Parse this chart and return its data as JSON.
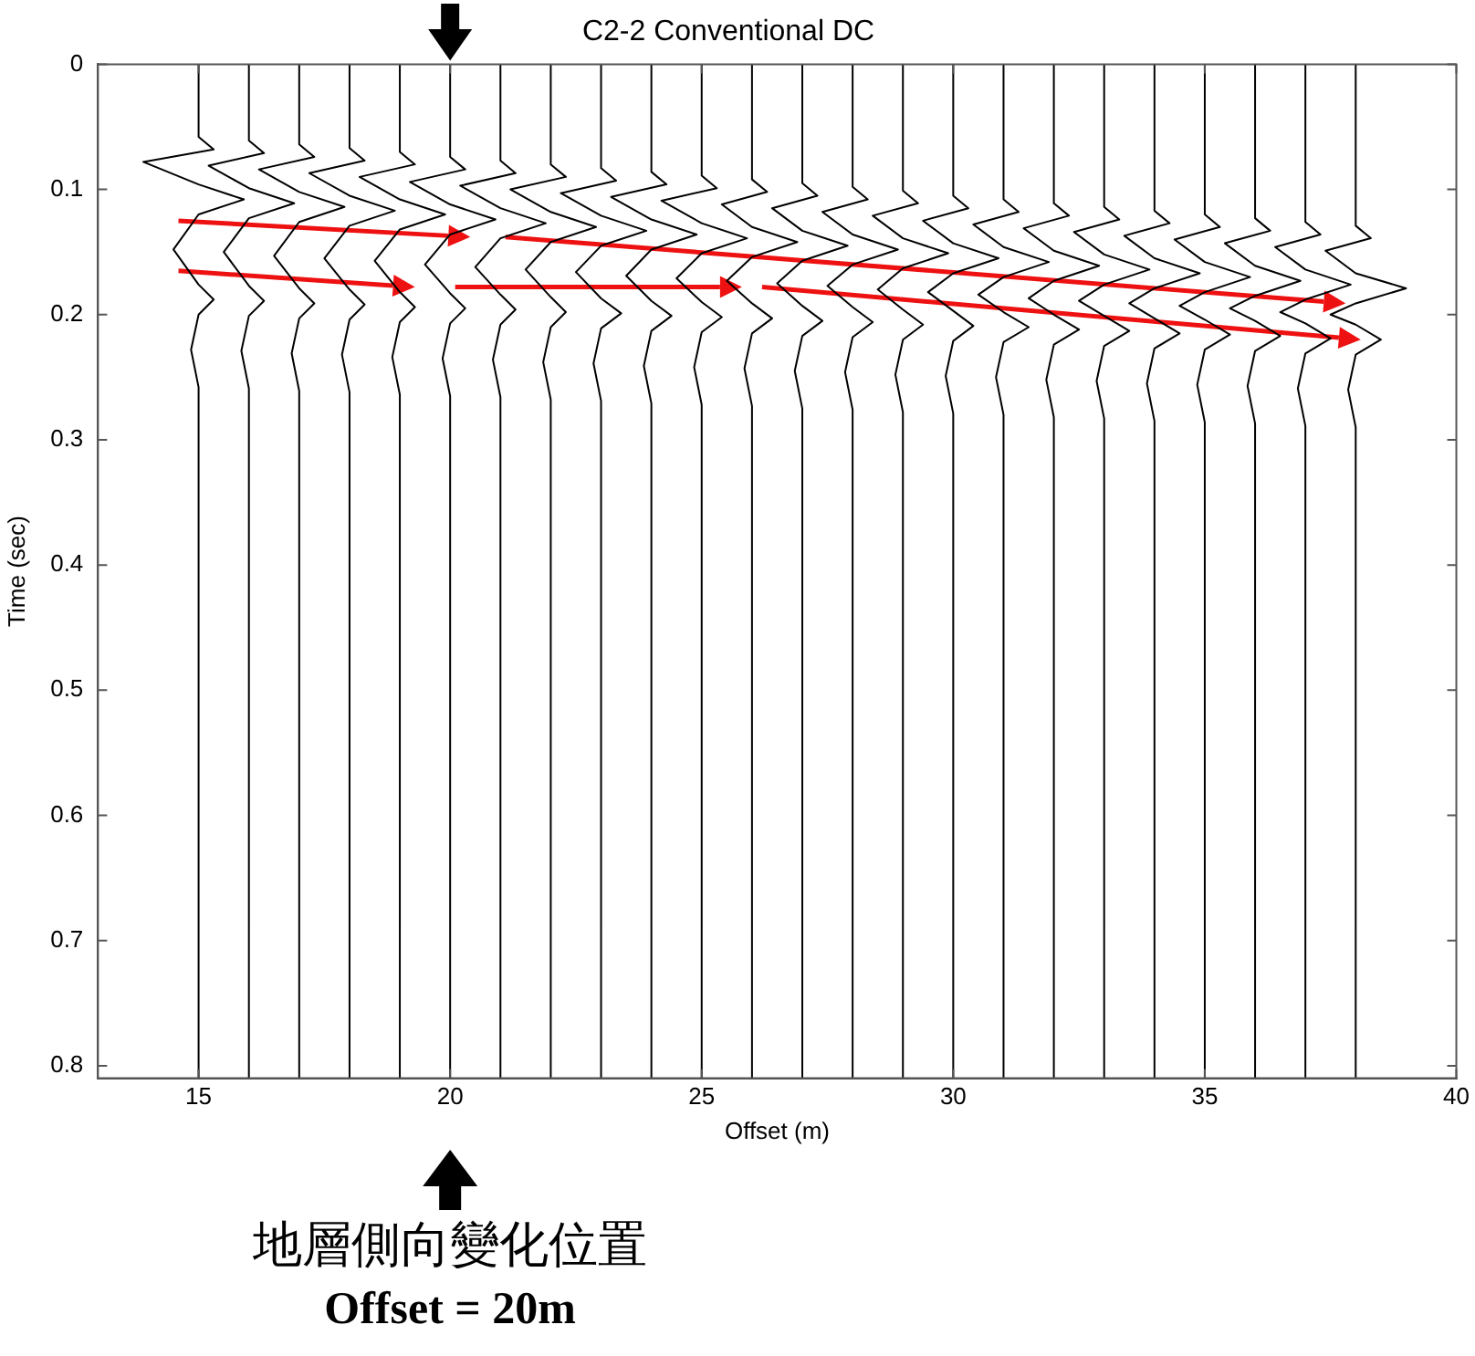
{
  "chart_data": {
    "type": "line",
    "title": "C2-2 Conventional DC",
    "xlabel": "Offset (m)",
    "ylabel": "Time (sec)",
    "xlim": [
      13,
      40
    ],
    "xticks": [
      15,
      20,
      25,
      30,
      35,
      40
    ],
    "ylim": [
      0.81,
      0
    ],
    "yticks": [
      0,
      0.1,
      0.2,
      0.3,
      0.4,
      0.5,
      0.6,
      0.7,
      0.8
    ],
    "grid": false,
    "legend": false,
    "marker": "none",
    "line_style": "solid",
    "annotations": [
      "地層側向變化位置",
      "Offset = 20m"
    ],
    "series": [
      {
        "color": "#000000",
        "x": [
          15,
          15,
          15.3,
          13.9,
          15,
          15.9,
          15,
          14.5,
          15,
          15.3,
          15,
          14.85,
          15,
          15
        ],
        "values": [
          0,
          0.058,
          0.068,
          0.078,
          0.096,
          0.108,
          0.12,
          0.148,
          0.176,
          0.188,
          0.2,
          0.228,
          0.258,
          0.81
        ]
      },
      {
        "color": "#000000",
        "x": [
          16,
          16,
          16.3,
          15.2,
          16,
          16.9,
          16,
          15.5,
          16,
          16.3,
          16,
          15.85,
          16,
          16
        ],
        "values": [
          0,
          0.061,
          0.071,
          0.081,
          0.099,
          0.111,
          0.123,
          0.15,
          0.177,
          0.189,
          0.201,
          0.229,
          0.259,
          0.81
        ]
      },
      {
        "color": "#000000",
        "x": [
          17,
          17,
          17.3,
          16.2,
          17,
          17.9,
          17,
          16.5,
          17,
          17.3,
          17,
          16.85,
          17,
          17
        ],
        "values": [
          0,
          0.064,
          0.074,
          0.084,
          0.102,
          0.114,
          0.126,
          0.153,
          0.179,
          0.191,
          0.203,
          0.231,
          0.261,
          0.81
        ]
      },
      {
        "color": "#000000",
        "x": [
          18,
          18,
          18.3,
          17.2,
          18,
          18.9,
          18,
          17.5,
          18,
          18.3,
          18,
          17.85,
          18,
          18
        ],
        "values": [
          0,
          0.067,
          0.077,
          0.087,
          0.105,
          0.117,
          0.129,
          0.155,
          0.18,
          0.192,
          0.204,
          0.232,
          0.262,
          0.81
        ]
      },
      {
        "color": "#000000",
        "x": [
          19,
          19,
          19.3,
          18.2,
          19,
          19.9,
          19,
          18.5,
          19,
          19.3,
          19,
          18.85,
          19,
          19
        ],
        "values": [
          0,
          0.07,
          0.08,
          0.09,
          0.108,
          0.12,
          0.132,
          0.157,
          0.182,
          0.194,
          0.206,
          0.234,
          0.264,
          0.81
        ]
      },
      {
        "color": "#000000",
        "x": [
          20,
          20,
          20.3,
          19.2,
          20,
          20.9,
          20,
          19.5,
          20,
          20.3,
          20,
          19.85,
          20,
          20
        ],
        "values": [
          0,
          0.074,
          0.084,
          0.094,
          0.112,
          0.124,
          0.136,
          0.16,
          0.183,
          0.195,
          0.207,
          0.235,
          0.265,
          0.81
        ]
      },
      {
        "color": "#000000",
        "x": [
          21,
          21,
          21.3,
          20.2,
          21,
          21.9,
          21,
          20.5,
          21,
          21.3,
          21,
          20.85,
          21,
          21
        ],
        "values": [
          0,
          0.077,
          0.087,
          0.097,
          0.115,
          0.127,
          0.139,
          0.162,
          0.184,
          0.196,
          0.208,
          0.236,
          0.266,
          0.81
        ]
      },
      {
        "color": "#000000",
        "x": [
          22,
          22,
          22.3,
          21.2,
          22,
          22.9,
          22,
          21.5,
          22,
          22.3,
          22,
          21.85,
          22,
          22
        ],
        "values": [
          0,
          0.08,
          0.09,
          0.1,
          0.118,
          0.13,
          0.142,
          0.164,
          0.186,
          0.198,
          0.21,
          0.238,
          0.268,
          0.81
        ]
      },
      {
        "color": "#000000",
        "x": [
          23,
          23,
          23.3,
          22.2,
          23,
          23.9,
          23,
          22.5,
          23,
          23.4,
          23,
          22.85,
          23,
          23
        ],
        "values": [
          0,
          0.083,
          0.093,
          0.103,
          0.121,
          0.133,
          0.145,
          0.166,
          0.187,
          0.199,
          0.211,
          0.239,
          0.269,
          0.81
        ]
      },
      {
        "color": "#000000",
        "x": [
          24,
          24,
          24.3,
          23.2,
          24,
          24.9,
          24,
          23.5,
          24,
          24.4,
          24,
          23.85,
          24,
          24
        ],
        "values": [
          0,
          0.086,
          0.096,
          0.106,
          0.124,
          0.136,
          0.148,
          0.169,
          0.189,
          0.201,
          0.213,
          0.241,
          0.271,
          0.81
        ]
      },
      {
        "color": "#000000",
        "x": [
          25,
          25,
          25.3,
          24.2,
          25,
          25.9,
          25,
          24.5,
          25,
          25.4,
          25,
          24.85,
          25,
          25
        ],
        "values": [
          0,
          0.089,
          0.099,
          0.109,
          0.127,
          0.139,
          0.151,
          0.171,
          0.19,
          0.202,
          0.214,
          0.242,
          0.272,
          0.81
        ]
      },
      {
        "color": "#000000",
        "x": [
          26,
          26,
          26.3,
          25.4,
          26,
          26.9,
          26,
          25.5,
          26,
          26.4,
          26,
          25.85,
          26,
          26
        ],
        "values": [
          0,
          0.092,
          0.102,
          0.112,
          0.13,
          0.142,
          0.154,
          0.173,
          0.191,
          0.203,
          0.215,
          0.243,
          0.273,
          0.81
        ]
      },
      {
        "color": "#000000",
        "x": [
          27,
          27,
          27.3,
          26.4,
          27,
          27.9,
          27,
          26.5,
          27,
          27.4,
          27,
          26.85,
          27,
          27
        ],
        "values": [
          0,
          0.095,
          0.105,
          0.115,
          0.133,
          0.145,
          0.157,
          0.175,
          0.193,
          0.205,
          0.217,
          0.245,
          0.275,
          0.81
        ]
      },
      {
        "color": "#000000",
        "x": [
          28,
          28,
          28.3,
          27.4,
          28,
          28.9,
          28,
          27.5,
          28,
          28.4,
          28,
          27.85,
          28,
          28
        ],
        "values": [
          0,
          0.098,
          0.108,
          0.118,
          0.136,
          0.148,
          0.16,
          0.177,
          0.194,
          0.206,
          0.218,
          0.246,
          0.276,
          0.81
        ]
      },
      {
        "color": "#000000",
        "x": [
          29,
          29,
          29.3,
          28.4,
          29,
          29.9,
          29,
          28.5,
          29,
          29.4,
          29,
          28.85,
          29,
          29
        ],
        "values": [
          0,
          0.101,
          0.111,
          0.121,
          0.139,
          0.151,
          0.163,
          0.18,
          0.196,
          0.208,
          0.22,
          0.248,
          0.278,
          0.81
        ]
      },
      {
        "color": "#000000",
        "x": [
          30,
          30,
          30.3,
          29.4,
          30,
          30.9,
          30,
          29.5,
          30,
          30.4,
          30,
          29.85,
          30,
          30
        ],
        "values": [
          0,
          0.105,
          0.115,
          0.125,
          0.143,
          0.155,
          0.167,
          0.182,
          0.197,
          0.209,
          0.221,
          0.249,
          0.279,
          0.81
        ]
      },
      {
        "color": "#000000",
        "x": [
          31,
          31,
          31.3,
          30.4,
          31,
          31.9,
          31,
          30.5,
          31,
          31.5,
          31,
          30.85,
          31,
          31
        ],
        "values": [
          0,
          0.108,
          0.118,
          0.128,
          0.146,
          0.158,
          0.17,
          0.184,
          0.198,
          0.21,
          0.222,
          0.25,
          0.28,
          0.81
        ]
      },
      {
        "color": "#000000",
        "x": [
          32,
          32,
          32.3,
          31.4,
          32,
          32.9,
          32,
          31.5,
          32,
          32.5,
          32,
          31.85,
          32,
          32
        ],
        "values": [
          0,
          0.111,
          0.121,
          0.131,
          0.149,
          0.161,
          0.173,
          0.187,
          0.2,
          0.212,
          0.224,
          0.252,
          0.282,
          0.81
        ]
      },
      {
        "color": "#000000",
        "x": [
          33,
          33,
          33.3,
          32.4,
          33,
          33.9,
          33,
          32.5,
          33,
          33.5,
          33,
          32.85,
          33,
          33
        ],
        "values": [
          0,
          0.114,
          0.124,
          0.134,
          0.152,
          0.164,
          0.176,
          0.189,
          0.201,
          0.213,
          0.225,
          0.253,
          0.283,
          0.81
        ]
      },
      {
        "color": "#000000",
        "x": [
          34,
          34,
          34.3,
          33.4,
          34,
          34.9,
          34,
          33.5,
          34,
          34.5,
          34,
          33.85,
          34,
          34
        ],
        "values": [
          0,
          0.117,
          0.127,
          0.137,
          0.155,
          0.167,
          0.179,
          0.191,
          0.203,
          0.215,
          0.227,
          0.255,
          0.285,
          0.81
        ]
      },
      {
        "color": "#000000",
        "x": [
          35,
          35,
          35.3,
          34.4,
          35,
          35.9,
          35,
          34.5,
          35,
          35.5,
          35,
          34.85,
          35,
          35
        ],
        "values": [
          0,
          0.12,
          0.13,
          0.14,
          0.158,
          0.17,
          0.182,
          0.193,
          0.204,
          0.216,
          0.228,
          0.256,
          0.286,
          0.81
        ]
      },
      {
        "color": "#000000",
        "x": [
          36,
          36,
          36.3,
          35.4,
          36,
          36.9,
          36,
          35.5,
          36,
          36.5,
          36,
          35.85,
          36,
          36
        ],
        "values": [
          0,
          0.123,
          0.133,
          0.143,
          0.161,
          0.173,
          0.185,
          0.195,
          0.205,
          0.217,
          0.229,
          0.257,
          0.287,
          0.81
        ]
      },
      {
        "color": "#000000",
        "x": [
          37,
          37,
          37.3,
          36.4,
          37,
          37.9,
          37,
          36.5,
          37,
          37.5,
          37,
          36.85,
          37,
          37
        ],
        "values": [
          0,
          0.126,
          0.136,
          0.146,
          0.164,
          0.176,
          0.188,
          0.198,
          0.207,
          0.219,
          0.231,
          0.259,
          0.289,
          0.81
        ]
      },
      {
        "color": "#000000",
        "x": [
          38,
          38,
          38.3,
          37.4,
          38,
          39,
          38,
          37.5,
          38,
          38.5,
          38,
          37.85,
          38,
          38
        ],
        "values": [
          0,
          0.129,
          0.139,
          0.149,
          0.167,
          0.179,
          0.191,
          0.2,
          0.208,
          0.22,
          0.232,
          0.26,
          0.29,
          0.81
        ]
      }
    ]
  }
}
